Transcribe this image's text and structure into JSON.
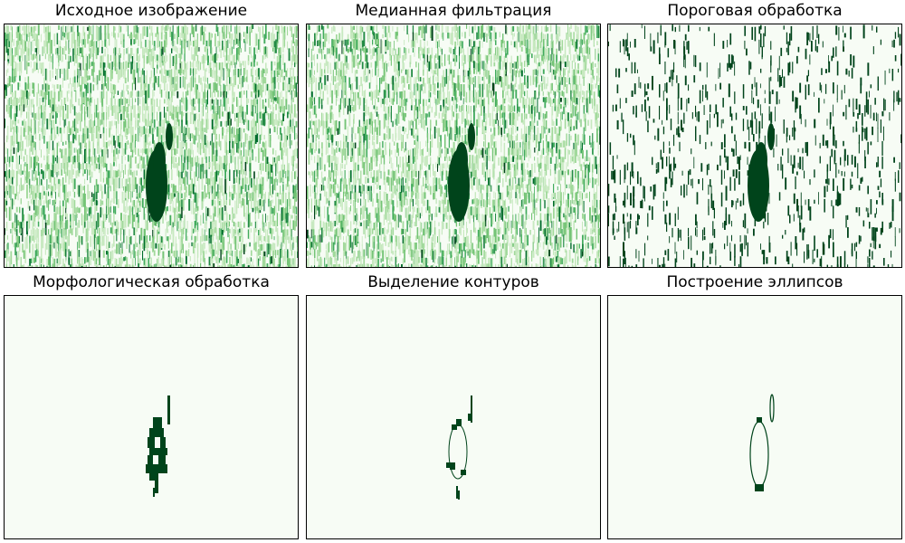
{
  "colors": {
    "background": "#f7fcf5",
    "light": "#a1d99b",
    "mid": "#41ab5d",
    "dark": "#00441b"
  },
  "colormap": "Greens",
  "chart_data": [
    {
      "type": "heatmap",
      "title": "Исходное изображение",
      "content": "noise",
      "noise_density": 0.55,
      "show_object": true
    },
    {
      "type": "heatmap",
      "title": "Медианная фильтрация",
      "content": "noise",
      "noise_density": 0.5,
      "show_object": true
    },
    {
      "type": "heatmap",
      "title": "Пороговая обработка",
      "content": "binary_noise",
      "noise_density": 0.12,
      "show_object": true
    },
    {
      "type": "heatmap",
      "title": "Морфологическая обработка",
      "content": "morph_blob"
    },
    {
      "type": "heatmap",
      "title": "Выделение контуров",
      "content": "contour"
    },
    {
      "type": "heatmap",
      "title": "Построение эллипсов",
      "content": "ellipses"
    }
  ]
}
